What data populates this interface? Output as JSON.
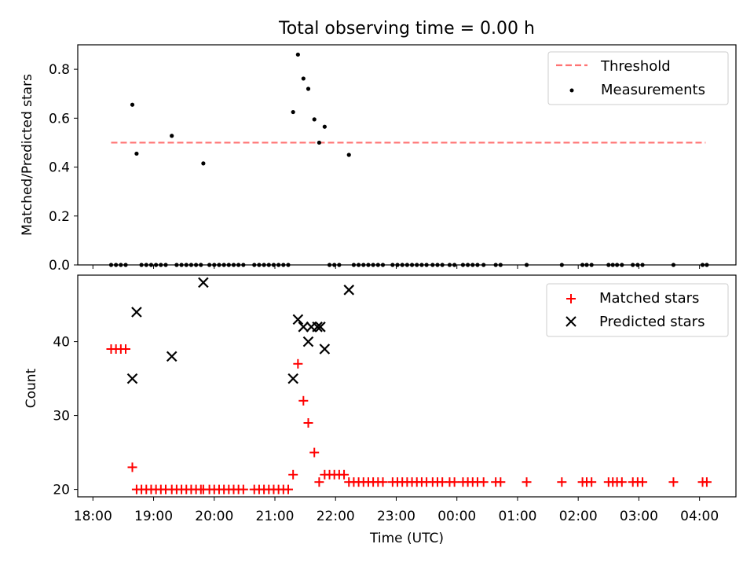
{
  "figure_title": "Total observing time = 0.00 h",
  "chart_data": [
    {
      "type": "scatter",
      "title": "Total observing time = 0.00 h",
      "xlabel": "",
      "ylabel": "Matched/Predicted stars",
      "x_unit": "hours since 18:00 UTC",
      "xlim": [
        -0.25,
        10.6
      ],
      "ylim": [
        0,
        0.9
      ],
      "yticks": [
        0.0,
        0.2,
        0.4,
        0.6,
        0.8
      ],
      "ytick_labels": [
        "0.0",
        "0.2",
        "0.4",
        "0.6",
        "0.8"
      ],
      "legend_position": "top-right",
      "threshold": {
        "name": "Threshold",
        "value": 0.5,
        "x_range": [
          0.3,
          10.1
        ],
        "color": "#ff7373"
      },
      "measurements": {
        "name": "Measurements",
        "color": "#000000",
        "nonzero_points": [
          [
            0.65,
            0.655
          ],
          [
            0.72,
            0.455
          ],
          [
            1.3,
            0.528
          ],
          [
            1.82,
            0.415
          ],
          [
            3.3,
            0.625
          ],
          [
            3.38,
            0.86
          ],
          [
            3.47,
            0.762
          ],
          [
            3.55,
            0.72
          ],
          [
            3.65,
            0.595
          ],
          [
            3.73,
            0.5
          ],
          [
            3.82,
            0.565
          ],
          [
            4.22,
            0.45
          ]
        ],
        "zero_points_x": [
          0.3,
          0.38,
          0.46,
          0.54,
          0.8,
          0.88,
          0.96,
          1.04,
          1.12,
          1.2,
          1.38,
          1.46,
          1.54,
          1.62,
          1.7,
          1.78,
          1.92,
          2.0,
          2.08,
          2.16,
          2.24,
          2.32,
          2.4,
          2.48,
          2.66,
          2.74,
          2.82,
          2.9,
          2.98,
          3.06,
          3.14,
          3.22,
          3.9,
          3.98,
          4.06,
          4.3,
          4.38,
          4.46,
          4.54,
          4.62,
          4.7,
          4.78,
          4.94,
          5.02,
          5.1,
          5.18,
          5.26,
          5.34,
          5.42,
          5.5,
          5.6,
          5.68,
          5.76,
          5.88,
          5.96,
          6.1,
          6.18,
          6.26,
          6.34,
          6.44,
          6.64,
          6.72,
          7.15,
          7.73,
          8.07,
          8.14,
          8.22,
          8.5,
          8.57,
          8.64,
          8.72,
          8.9,
          8.98,
          9.06,
          9.57,
          10.05,
          10.12
        ]
      }
    },
    {
      "type": "scatter",
      "title": "",
      "xlabel": "Time (UTC)",
      "ylabel": "Count",
      "x_unit": "hours since 18:00 UTC",
      "xlim": [
        -0.25,
        10.6
      ],
      "ylim": [
        19,
        49
      ],
      "xticks": [
        0,
        1,
        2,
        3,
        4,
        5,
        6,
        7,
        8,
        9,
        10
      ],
      "xtick_labels": [
        "18:00",
        "19:00",
        "20:00",
        "21:00",
        "22:00",
        "23:00",
        "00:00",
        "01:00",
        "02:00",
        "03:00",
        "04:00"
      ],
      "yticks": [
        20,
        30,
        40
      ],
      "ytick_labels": [
        "20",
        "30",
        "40"
      ],
      "legend_position": "top-right",
      "series": [
        {
          "name": "Matched stars",
          "marker": "plus",
          "color": "#ff0000",
          "points": [
            [
              0.3,
              39
            ],
            [
              0.38,
              39
            ],
            [
              0.46,
              39
            ],
            [
              0.54,
              39
            ],
            [
              0.65,
              23
            ],
            [
              0.72,
              20
            ],
            [
              0.8,
              20
            ],
            [
              0.88,
              20
            ],
            [
              0.96,
              20
            ],
            [
              1.04,
              20
            ],
            [
              1.12,
              20
            ],
            [
              1.2,
              20
            ],
            [
              1.3,
              20
            ],
            [
              1.38,
              20
            ],
            [
              1.46,
              20
            ],
            [
              1.54,
              20
            ],
            [
              1.62,
              20
            ],
            [
              1.7,
              20
            ],
            [
              1.78,
              20
            ],
            [
              1.82,
              20
            ],
            [
              1.92,
              20
            ],
            [
              2.0,
              20
            ],
            [
              2.08,
              20
            ],
            [
              2.16,
              20
            ],
            [
              2.24,
              20
            ],
            [
              2.32,
              20
            ],
            [
              2.4,
              20
            ],
            [
              2.48,
              20
            ],
            [
              2.66,
              20
            ],
            [
              2.74,
              20
            ],
            [
              2.82,
              20
            ],
            [
              2.9,
              20
            ],
            [
              2.98,
              20
            ],
            [
              3.06,
              20
            ],
            [
              3.14,
              20
            ],
            [
              3.22,
              20
            ],
            [
              3.3,
              22
            ],
            [
              3.38,
              37
            ],
            [
              3.47,
              32
            ],
            [
              3.55,
              29
            ],
            [
              3.65,
              25
            ],
            [
              3.73,
              21
            ],
            [
              3.82,
              22
            ],
            [
              3.9,
              22
            ],
            [
              3.98,
              22
            ],
            [
              4.06,
              22
            ],
            [
              4.14,
              22
            ],
            [
              4.22,
              21
            ],
            [
              4.3,
              21
            ],
            [
              4.38,
              21
            ],
            [
              4.46,
              21
            ],
            [
              4.54,
              21
            ],
            [
              4.62,
              21
            ],
            [
              4.7,
              21
            ],
            [
              4.78,
              21
            ],
            [
              4.94,
              21
            ],
            [
              5.02,
              21
            ],
            [
              5.1,
              21
            ],
            [
              5.18,
              21
            ],
            [
              5.26,
              21
            ],
            [
              5.34,
              21
            ],
            [
              5.42,
              21
            ],
            [
              5.5,
              21
            ],
            [
              5.6,
              21
            ],
            [
              5.68,
              21
            ],
            [
              5.76,
              21
            ],
            [
              5.88,
              21
            ],
            [
              5.96,
              21
            ],
            [
              6.1,
              21
            ],
            [
              6.18,
              21
            ],
            [
              6.26,
              21
            ],
            [
              6.34,
              21
            ],
            [
              6.44,
              21
            ],
            [
              6.64,
              21
            ],
            [
              6.72,
              21
            ],
            [
              7.15,
              21
            ],
            [
              7.73,
              21
            ],
            [
              8.07,
              21
            ],
            [
              8.14,
              21
            ],
            [
              8.22,
              21
            ],
            [
              8.5,
              21
            ],
            [
              8.57,
              21
            ],
            [
              8.64,
              21
            ],
            [
              8.72,
              21
            ],
            [
              8.9,
              21
            ],
            [
              8.98,
              21
            ],
            [
              9.06,
              21
            ],
            [
              9.57,
              21
            ],
            [
              10.05,
              21
            ],
            [
              10.12,
              21
            ]
          ]
        },
        {
          "name": "Predicted stars",
          "marker": "x",
          "color": "#000000",
          "points": [
            [
              0.65,
              35
            ],
            [
              0.72,
              44
            ],
            [
              1.3,
              38
            ],
            [
              1.82,
              48
            ],
            [
              3.3,
              35
            ],
            [
              3.38,
              43
            ],
            [
              3.47,
              42
            ],
            [
              3.55,
              40
            ],
            [
              3.6,
              42
            ],
            [
              3.7,
              42
            ],
            [
              3.75,
              42
            ],
            [
              3.82,
              39
            ],
            [
              4.22,
              47
            ]
          ]
        }
      ]
    }
  ]
}
